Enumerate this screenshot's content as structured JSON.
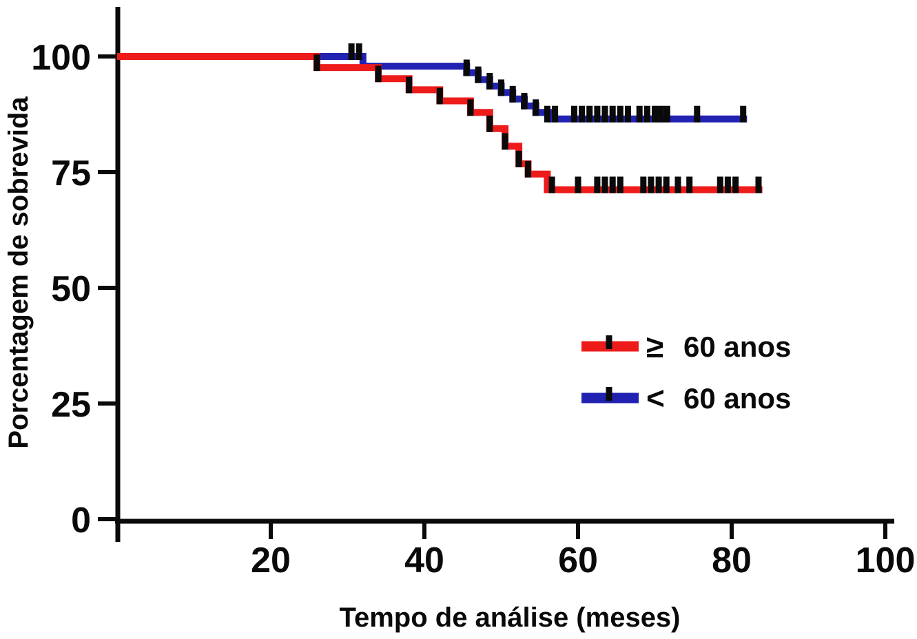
{
  "figure": {
    "background": "#ffffff",
    "axis_color": "#0a0a0a"
  },
  "chart_data": {
    "type": "line",
    "subtype": "kaplan-meier-step-survival",
    "title": "",
    "xlabel": "Tempo de análise (meses)",
    "ylabel": "Porcentagem de sobrevida",
    "xlim": [
      0,
      100
    ],
    "ylim": [
      0,
      100
    ],
    "x_ticks": [
      20,
      40,
      60,
      80,
      100
    ],
    "y_ticks": [
      0,
      25,
      50,
      75,
      100
    ],
    "grid": false,
    "legend_position": "inside-right",
    "censor_mark_color": "#0a0a0a",
    "series": [
      {
        "name": "≥ 60 anos",
        "symbol": "≥",
        "label": "60 anos",
        "color": "#EE1B1B",
        "steps": [
          [
            0,
            100
          ],
          [
            26,
            100
          ],
          [
            26,
            97.6
          ],
          [
            34,
            97.6
          ],
          [
            34,
            95.2
          ],
          [
            38,
            95.2
          ],
          [
            38,
            92.8
          ],
          [
            42,
            92.8
          ],
          [
            42,
            90.4
          ],
          [
            46,
            90.4
          ],
          [
            46,
            87.9
          ],
          [
            48.5,
            87.9
          ],
          [
            48.5,
            84.4
          ],
          [
            50.5,
            84.4
          ],
          [
            50.5,
            80.6
          ],
          [
            52.3,
            80.6
          ],
          [
            52.3,
            76.8
          ],
          [
            53.5,
            76.8
          ],
          [
            53.5,
            74.6
          ],
          [
            56,
            74.6
          ],
          [
            56,
            71.2
          ],
          [
            84,
            71.2
          ]
        ],
        "censor_marks": [
          [
            26,
            97.6
          ],
          [
            34,
            95.2
          ],
          [
            38,
            92.8
          ],
          [
            42,
            90.4
          ],
          [
            46,
            87.9
          ],
          [
            48.5,
            84.4
          ],
          [
            50.5,
            80.6
          ],
          [
            52.3,
            76.8
          ],
          [
            53.5,
            74.6
          ],
          [
            56.6,
            71.2
          ],
          [
            60,
            71.2
          ],
          [
            62.5,
            71.2
          ],
          [
            63.5,
            71.2
          ],
          [
            64.5,
            71.2
          ],
          [
            65.5,
            71.2
          ],
          [
            68.5,
            71.2
          ],
          [
            69.5,
            71.2
          ],
          [
            70.5,
            71.2
          ],
          [
            71.5,
            71.2
          ],
          [
            73,
            71.2
          ],
          [
            74.5,
            71.2
          ],
          [
            78.5,
            71.2
          ],
          [
            79.5,
            71.2
          ],
          [
            80.5,
            71.2
          ],
          [
            83.5,
            71.2
          ]
        ]
      },
      {
        "name": "< 60 anos",
        "symbol": "<",
        "label": "60 anos",
        "color": "#2121B2",
        "steps": [
          [
            0,
            100
          ],
          [
            32,
            100
          ],
          [
            32,
            97.9
          ],
          [
            45.5,
            97.9
          ],
          [
            45.5,
            96.5
          ],
          [
            47,
            96.5
          ],
          [
            47,
            95.0
          ],
          [
            48.5,
            95.0
          ],
          [
            48.5,
            93.6
          ],
          [
            50,
            93.6
          ],
          [
            50,
            92.2
          ],
          [
            51.5,
            92.2
          ],
          [
            51.5,
            90.8
          ],
          [
            53,
            90.8
          ],
          [
            53,
            89.3
          ],
          [
            54.5,
            89.3
          ],
          [
            54.5,
            87.9
          ],
          [
            56.5,
            87.9
          ],
          [
            56.5,
            86.5
          ],
          [
            82,
            86.5
          ]
        ],
        "censor_marks": [
          [
            30.5,
            100
          ],
          [
            31.5,
            100
          ],
          [
            45.5,
            96.5
          ],
          [
            47,
            95.0
          ],
          [
            48.5,
            93.6
          ],
          [
            50,
            92.2
          ],
          [
            51.5,
            90.8
          ],
          [
            53,
            89.3
          ],
          [
            54.5,
            87.9
          ],
          [
            56,
            86.5
          ],
          [
            57,
            86.5
          ],
          [
            59.5,
            86.5
          ],
          [
            60.5,
            86.5
          ],
          [
            61.5,
            86.5
          ],
          [
            62.5,
            86.5
          ],
          [
            63.5,
            86.5
          ],
          [
            64.5,
            86.5
          ],
          [
            65.5,
            86.5
          ],
          [
            66.5,
            86.5
          ],
          [
            68,
            86.5
          ],
          [
            69,
            86.5
          ],
          [
            70,
            86.5
          ],
          [
            70.8,
            86.5
          ],
          [
            71.6,
            86.5
          ],
          [
            75.5,
            86.5
          ],
          [
            81.5,
            86.5
          ]
        ]
      }
    ]
  }
}
